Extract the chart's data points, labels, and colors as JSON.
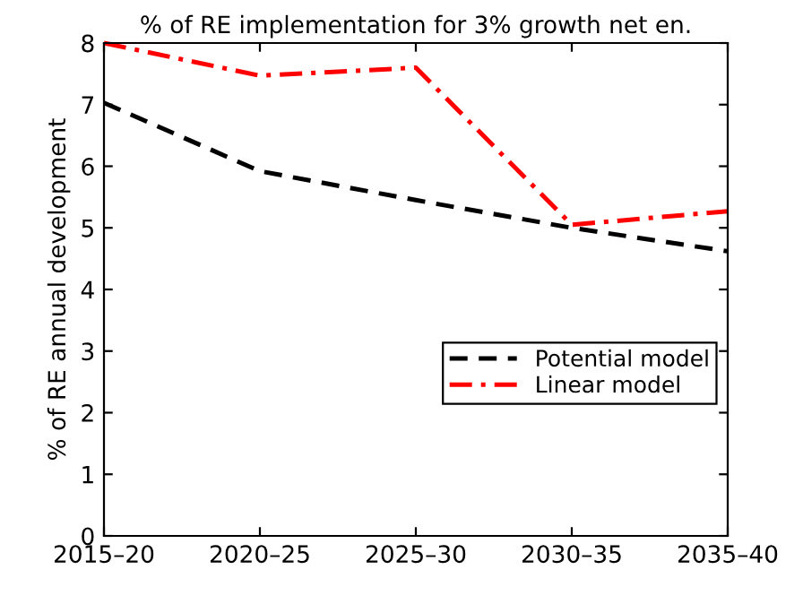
{
  "chart_data": {
    "type": "line",
    "title": "% of RE implementation for 3% growth net en.",
    "ylabel": "% of RE annual development",
    "categories": [
      "2015–20",
      "2020–25",
      "2025–30",
      "2030–35",
      "2035–40"
    ],
    "series": [
      {
        "name": "Potential model",
        "color": "#000000",
        "line_style": "dashed",
        "values": [
          7.03,
          5.92,
          5.45,
          5.0,
          4.62
        ]
      },
      {
        "name": "Linear model",
        "color": "#ff0000",
        "line_style": "dashdot",
        "values": [
          8.0,
          7.47,
          7.6,
          5.05,
          5.27
        ]
      }
    ],
    "ylim": [
      0,
      8
    ],
    "yticks": [
      0,
      1,
      2,
      3,
      4,
      5,
      6,
      7,
      8
    ],
    "grid": false,
    "legend": "right",
    "marker": "none"
  }
}
